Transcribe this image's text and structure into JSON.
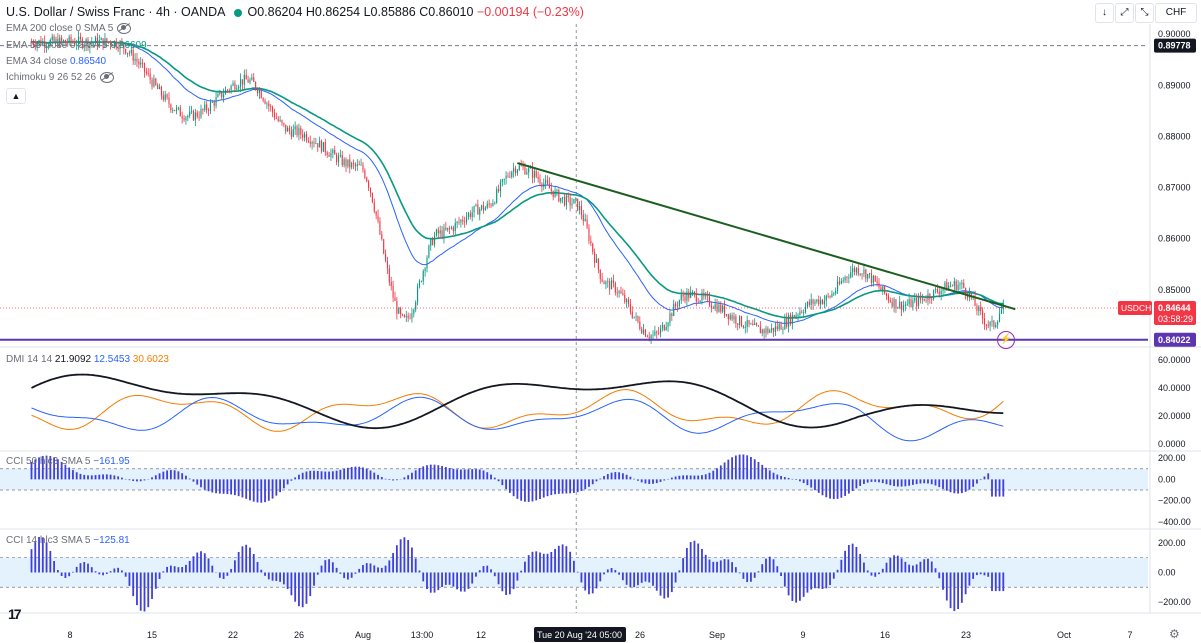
{
  "header": {
    "symbol": "U.S. Dollar / Swiss Franc · 4h · OANDA",
    "open": "O0.86204",
    "high": "H0.86254",
    "low": "L0.85886",
    "close": "C0.86010",
    "change": "−0.00194 (−0.23%)",
    "currency": "CHF"
  },
  "indicators": {
    "ema200": "EMA 200 close 0 SMA 5",
    "ema55_label": "EMA 55 close 0 SMA 5",
    "ema55_value": "0.86609",
    "ema34_label": "EMA 34 close",
    "ema34_value": "0.86540",
    "ichimoku": "Ichimoku 9 26 52 26",
    "dmi_label": "DMI 14 14",
    "dmi_adx": "21.9092",
    "dmi_plus": "12.5453",
    "dmi_minus": "30.6023",
    "cci50_label": "CCI 50 hlc3 SMA 5",
    "cci50_value": "−161.95",
    "cci14_label": "CCI 14 hlc3 SMA 5",
    "cci14_value": "−125.81"
  },
  "colors": {
    "up": "#089981",
    "down": "#f23645",
    "ema55": "#089981",
    "ema34": "#2962ff",
    "trendline": "#1b5e20",
    "support": "#5e35b1",
    "dmi_adx": "#131722",
    "dmi_plus": "#2962ff",
    "dmi_minus": "#f57c00",
    "cci": "#3f3fd9",
    "cci_band": "#e3f2fd"
  },
  "chart_data": [
    {
      "type": "candlestick",
      "title": "U.S. Dollar / Swiss Franc · 4h · OANDA",
      "ylim": [
        0.839,
        0.902
      ],
      "y_ticks": [
        "0.90000",
        "0.89000",
        "0.88000",
        "0.87000",
        "0.86000",
        "0.85000"
      ],
      "x_ticks": [
        "8",
        "15",
        "22",
        "26",
        "Aug",
        "13:00",
        "12",
        "Tue 20 Aug '24  05:00",
        "26",
        "Sep",
        "9",
        "16",
        "23",
        "Oct",
        "7"
      ],
      "key_points": [
        {
          "date": "Jul 3",
          "close": 0.8985
        },
        {
          "date": "Jul 10",
          "close": 0.8985
        },
        {
          "date": "Jul 17",
          "close": 0.884
        },
        {
          "date": "Jul 22",
          "close": 0.891
        },
        {
          "date": "Jul 26",
          "close": 0.881
        },
        {
          "date": "Aug 1",
          "close": 0.874
        },
        {
          "date": "Aug 5",
          "close": 0.844
        },
        {
          "date": "Aug 8",
          "close": 0.861
        },
        {
          "date": "Aug 12",
          "close": 0.866
        },
        {
          "date": "Aug 15",
          "close": 0.874
        },
        {
          "date": "Aug 20",
          "close": 0.867
        },
        {
          "date": "Aug 23",
          "close": 0.851
        },
        {
          "date": "Aug 27",
          "close": 0.841
        },
        {
          "date": "Aug 30",
          "close": 0.849
        },
        {
          "date": "Sep 6",
          "close": 0.842
        },
        {
          "date": "Sep 11",
          "close": 0.848
        },
        {
          "date": "Sep 14",
          "close": 0.854
        },
        {
          "date": "Sep 18",
          "close": 0.847
        },
        {
          "date": "Sep 23",
          "close": 0.851
        },
        {
          "date": "Sep 26",
          "close": 0.843
        },
        {
          "date": "Sep 27",
          "close": 0.8464
        }
      ],
      "ema55_value": 0.86609,
      "ema34_value": 0.8654,
      "trendline": {
        "from": {
          "date": "Aug 15",
          "price": 0.8748
        },
        "to": {
          "date": "Sep 27",
          "price": 0.846
        }
      },
      "price_labels": [
        {
          "label": "0.89778",
          "price": 0.89778
        },
        {
          "label": "USDCHF",
          "price": 0.84644
        },
        {
          "label": "0.84644",
          "price": 0.84644
        },
        {
          "label": "03:58:29",
          "price": 0.84644
        },
        {
          "label": "0.84022",
          "price": 0.84022
        }
      ],
      "support_line": 0.84022,
      "dashed_line": 0.89778
    },
    {
      "type": "line",
      "title": "DMI 14 14",
      "ylim": [
        0,
        65
      ],
      "y_ticks": [
        "60.0000",
        "40.0000",
        "20.0000",
        "0.0000"
      ],
      "series": [
        {
          "name": "ADX",
          "value": 21.9092
        },
        {
          "name": "+DI",
          "value": 12.5453
        },
        {
          "name": "−DI",
          "value": 30.6023
        }
      ]
    },
    {
      "type": "histogram",
      "title": "CCI 50 hlc3 SMA 5",
      "ylim": [
        -420,
        220
      ],
      "y_ticks": [
        "200.00",
        "0.00",
        "−200.00",
        "−400.00"
      ],
      "band": [
        -100,
        100
      ],
      "last_value": -161.95
    },
    {
      "type": "histogram",
      "title": "CCI 14 hlc3 SMA 5",
      "ylim": [
        -240,
        260
      ],
      "y_ticks": [
        "200.00",
        "0.00",
        "−200.00"
      ],
      "band": [
        -100,
        100
      ],
      "last_value": -125.81
    }
  ]
}
